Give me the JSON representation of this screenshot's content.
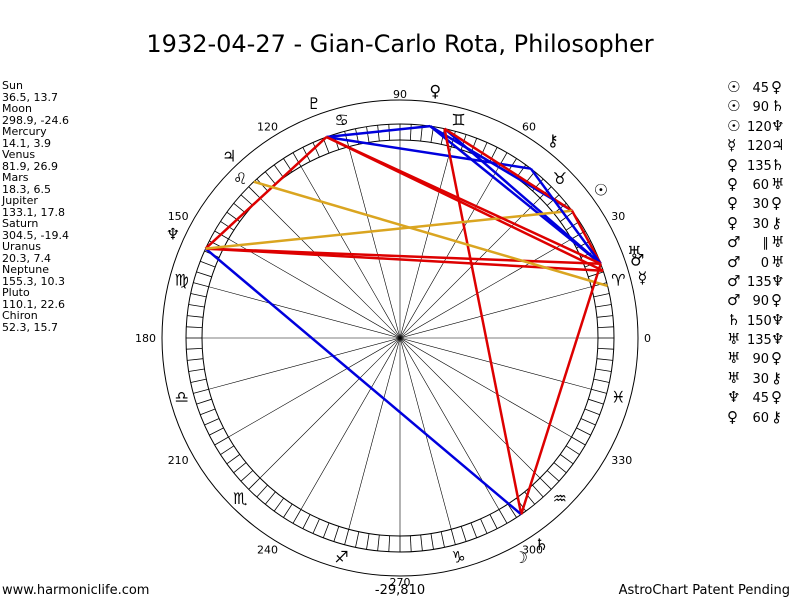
{
  "title": "1932-04-27 - Gian-Carlo Rota, Philosopher",
  "planets": [
    {
      "name": "Sun",
      "lon": 36.5,
      "lat": 13.7,
      "coords": "36.5, 13.7",
      "glyph": "☉"
    },
    {
      "name": "Moon",
      "lon": 298.9,
      "lat": -24.6,
      "coords": "298.9, -24.6",
      "glyph": "☽"
    },
    {
      "name": "Mercury",
      "lon": 14.1,
      "lat": 3.9,
      "coords": "14.1, 3.9",
      "glyph": "☿"
    },
    {
      "name": "Venus",
      "lon": 81.9,
      "lat": 26.9,
      "coords": "81.9, 26.9",
      "glyph": "♀"
    },
    {
      "name": "Mars",
      "lon": 18.3,
      "lat": 6.5,
      "coords": "18.3, 6.5",
      "glyph": "♂"
    },
    {
      "name": "Jupiter",
      "lon": 133.1,
      "lat": 17.8,
      "coords": "133.1, 17.8",
      "glyph": "♃"
    },
    {
      "name": "Saturn",
      "lon": 304.5,
      "lat": -19.4,
      "coords": "304.5, -19.4",
      "glyph": "♄"
    },
    {
      "name": "Uranus",
      "lon": 20.3,
      "lat": 7.4,
      "coords": "20.3, 7.4",
      "glyph": "♅"
    },
    {
      "name": "Neptune",
      "lon": 155.3,
      "lat": 10.3,
      "coords": "155.3, 10.3",
      "glyph": "♆"
    },
    {
      "name": "Pluto",
      "lon": 110.1,
      "lat": 22.6,
      "coords": "110.1, 22.6",
      "glyph": "♇"
    },
    {
      "name": "Chiron",
      "lon": 52.3,
      "lat": 15.7,
      "coords": "52.3, 15.7",
      "glyph": "⚷"
    }
  ],
  "degree_labels": [
    "0",
    "30",
    "60",
    "90",
    "120",
    "150",
    "180",
    "210",
    "240",
    "270",
    "300",
    "330"
  ],
  "sign_glyphs": [
    "♈",
    "♉",
    "♊",
    "♋",
    "♌",
    "♍",
    "♎",
    "♏",
    "♐",
    "♑",
    "♒",
    "♓"
  ],
  "aspects": [
    {
      "p1": "☉",
      "angle": "45",
      "p2": "♀",
      "color": "#0000dd"
    },
    {
      "p1": "☉",
      "angle": "90",
      "p2": "♄",
      "color": "#dd0000"
    },
    {
      "p1": "☉",
      "angle": "120",
      "p2": "♆",
      "color": "#0000dd"
    },
    {
      "p1": "☿",
      "angle": "120",
      "p2": "♃",
      "color": "#0000dd"
    },
    {
      "p1": "♀",
      "angle": "135",
      "p2": "♄",
      "color": "#dd0000"
    },
    {
      "p1": "♀",
      "angle": "60",
      "p2": "♅",
      "color": "#0000dd"
    },
    {
      "p1": "♀",
      "angle": "30",
      "p2": "♀",
      "color": "#0000dd"
    },
    {
      "p1": "♀",
      "angle": "30",
      "p2": "⚷",
      "color": "#0000dd"
    },
    {
      "p1": "♂",
      "angle": "∥",
      "p2": "♅",
      "color": "#dd0000"
    },
    {
      "p1": "♂",
      "angle": "0",
      "p2": "♅",
      "color": "#dd0000"
    },
    {
      "p1": "♂",
      "angle": "135",
      "p2": "♆",
      "color": "#dd0000"
    },
    {
      "p1": "♂",
      "angle": "90",
      "p2": "♀",
      "color": "#dd0000"
    },
    {
      "p1": "♄",
      "angle": "150",
      "p2": "♆",
      "color": "#0000dd"
    },
    {
      "p1": "♅",
      "angle": "135",
      "p2": "♆",
      "color": "#dd0000"
    },
    {
      "p1": "♅",
      "angle": "90",
      "p2": "♀",
      "color": "#dd0000"
    },
    {
      "p1": "♅",
      "angle": "30",
      "p2": "⚷",
      "color": "#0000dd"
    },
    {
      "p1": "♆",
      "angle": "45",
      "p2": "♀",
      "color": "#0000dd"
    },
    {
      "p1": "♀",
      "angle": "60",
      "p2": "⚷",
      "color": "#0000dd"
    }
  ],
  "chart_lines": [
    {
      "a": 81.9,
      "b": 20.3,
      "color": "#0000dd"
    },
    {
      "a": 81.9,
      "b": 36.5,
      "color": "#0000dd"
    },
    {
      "a": 110.1,
      "b": 52.3,
      "color": "#0000dd"
    },
    {
      "a": 110.1,
      "b": 81.9,
      "color": "#0000dd"
    },
    {
      "a": 110.1,
      "b": 18.3,
      "color": "#dd0000"
    },
    {
      "a": 110.1,
      "b": 155.3,
      "color": "#dd0000"
    },
    {
      "a": 78.0,
      "b": 20.3,
      "color": "#0000dd"
    },
    {
      "a": 78.0,
      "b": 36.5,
      "color": "#dd0000"
    },
    {
      "a": 78.0,
      "b": 304.5,
      "color": "#dd0000"
    },
    {
      "a": 155.3,
      "b": 304.5,
      "color": "#0000dd"
    },
    {
      "a": 155.3,
      "b": 20.3,
      "color": "#dd0000"
    },
    {
      "a": 155.3,
      "b": 18.3,
      "color": "#dd0000"
    },
    {
      "a": 155.3,
      "b": 36.5,
      "color": "#daa520"
    },
    {
      "a": 133.1,
      "b": 14.1,
      "color": "#daa520"
    },
    {
      "a": 304.5,
      "b": 20.3,
      "color": "#dd0000"
    },
    {
      "a": 36.5,
      "b": 20.3,
      "color": "#dd0000"
    },
    {
      "a": 52.3,
      "b": 20.3,
      "color": "#0000dd"
    },
    {
      "a": 110.1,
      "b": 20.3,
      "color": "#dd0000"
    }
  ],
  "footer": {
    "left": "www.harmoniclife.com",
    "center": "-29,810",
    "right": "AstroChart Patent Pending"
  }
}
